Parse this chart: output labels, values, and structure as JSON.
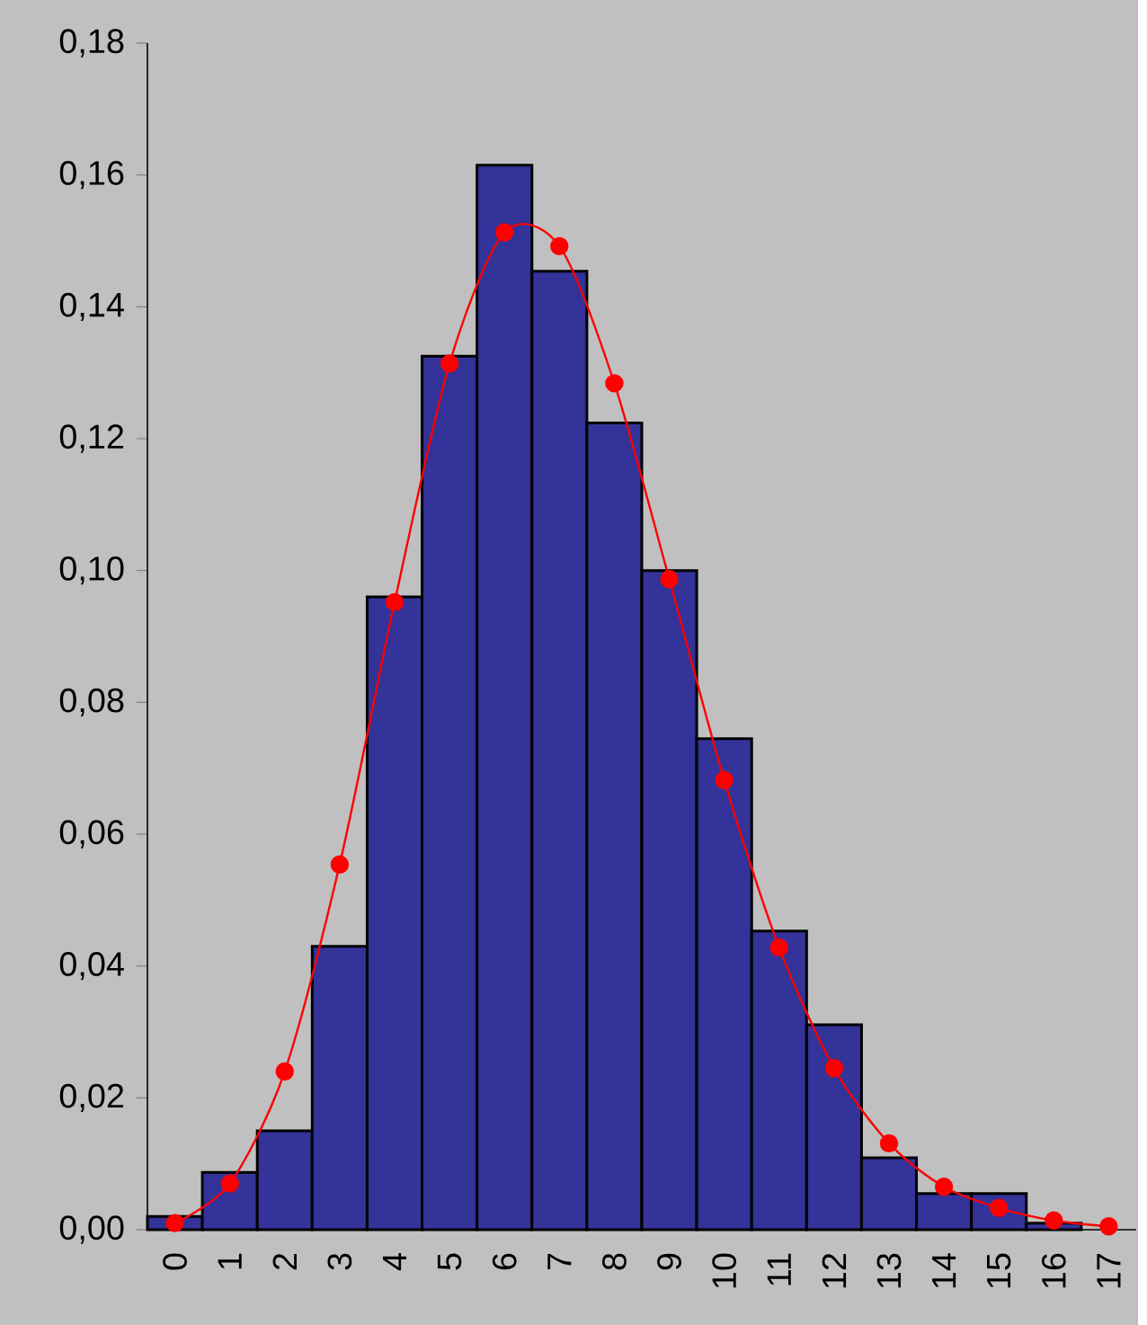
{
  "chart_data": {
    "type": "bar",
    "categories": [
      "0",
      "1",
      "2",
      "3",
      "4",
      "5",
      "6",
      "7",
      "8",
      "9",
      "10",
      "11",
      "12",
      "13",
      "14",
      "15",
      "16",
      "17"
    ],
    "series": [
      {
        "color": "#333399",
        "values": [
          0.002,
          0.0087,
          0.015,
          0.043,
          0.096,
          0.1325,
          0.1615,
          0.1454,
          0.1224,
          0.1,
          0.0745,
          0.0453,
          0.0311,
          0.0109,
          0.0055,
          0.0055,
          0.001,
          null
        ]
      },
      {
        "type": "line",
        "color": "#ff0000",
        "marker": "circle",
        "values": [
          0.001,
          0.007,
          0.024,
          0.0554,
          0.0952,
          0.1314,
          0.1513,
          0.1492,
          0.1284,
          0.0987,
          0.0682,
          0.0428,
          0.0245,
          0.0131,
          0.0065,
          0.0033,
          0.0014,
          0.0005
        ]
      }
    ],
    "ylim": [
      0,
      0.18
    ],
    "yticks": [
      {
        "value": 0,
        "label": "0,00"
      },
      {
        "value": 0.02,
        "label": "0,02"
      },
      {
        "value": 0.04,
        "label": "0,04"
      },
      {
        "value": 0.06,
        "label": "0,06"
      },
      {
        "value": 0.08,
        "label": "0,08"
      },
      {
        "value": 0.1,
        "label": "0,10"
      },
      {
        "value": 0.12,
        "label": "0,12"
      },
      {
        "value": 0.14,
        "label": "0,14"
      },
      {
        "value": 0.16,
        "label": "0,16"
      },
      {
        "value": 0.18,
        "label": "0,18"
      }
    ],
    "grid": false
  }
}
